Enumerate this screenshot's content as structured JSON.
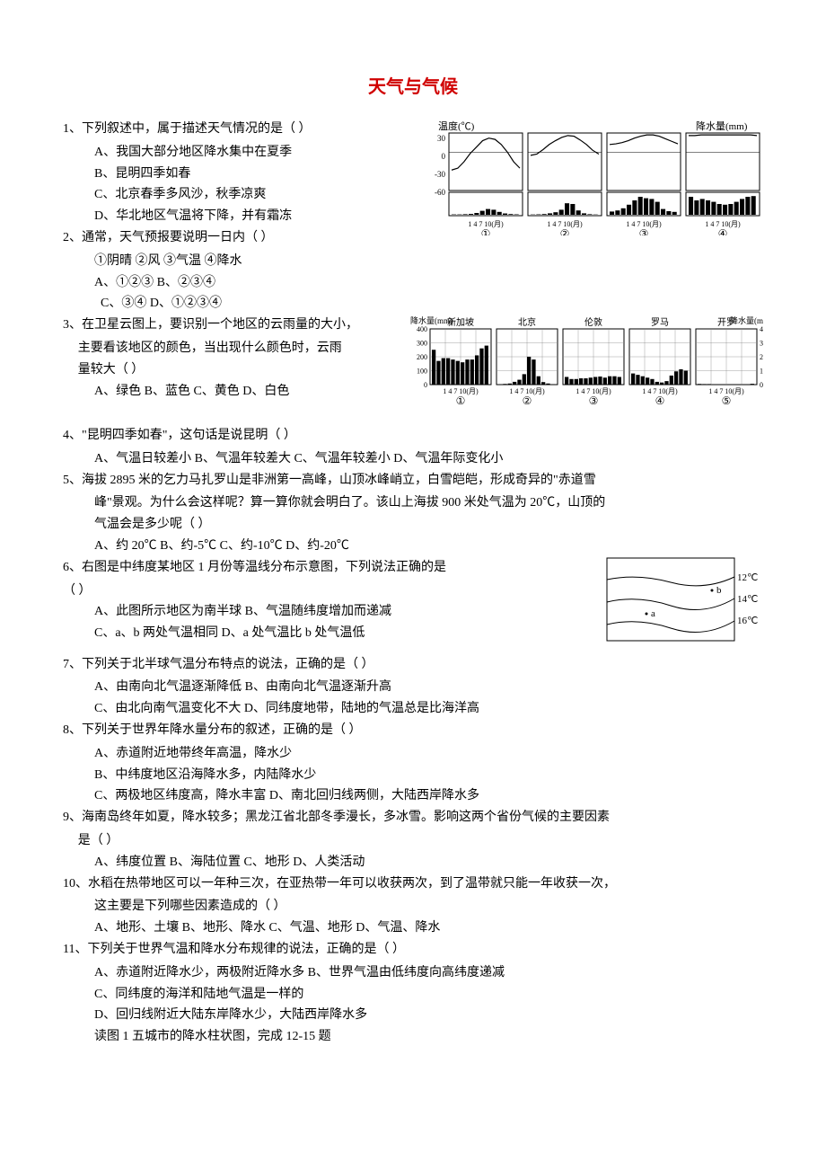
{
  "title": "天气与气候",
  "q1": {
    "stem": "1、下列叙述中，属于描述天气情况的是（   ）",
    "A": "A、我国大部分地区降水集中在夏季",
    "B": "B、昆明四季如春",
    "C": "C、北京春季多风沙，秋季凉爽",
    "D": "D、华北地区气温将下降，并有霜冻"
  },
  "q2": {
    "stem": "2、通常，天气预报要说明一日内（     ）",
    "line2": "①阴晴    ②风    ③气温    ④降水",
    "A": "A、①②③    B、②③④",
    "C": "C、③④   D、①②③④"
  },
  "q3": {
    "stem": "3、在卫星云图上，要识别一个地区的云雨量的大小，",
    "line2": "主要看该地区的颜色，当出现什么颜色时，云雨",
    "line3": "量较大（   ）",
    "opts": "A、绿色    B、蓝色    C、黄色    D、白色"
  },
  "q4": {
    "stem": "4、\"昆明四季如春\"，这句话是说昆明（    ）",
    "opts": "A、气温日较差小 B、气温年较差大  C、气温年较差小  D、气温年际变化小"
  },
  "q5": {
    "stem": "5、海拔 2895 米的乞力马扎罗山是非洲第一高峰，山顶冰峰峭立，白雪皑皑，形成奇异的\"赤道雪",
    "line2": "峰\"景观。为什么会这样呢？算一算你就会明白了。该山上海拔 900 米处气温为 20℃，山顶的",
    "line3": "气温会是多少呢（   ）",
    "opts": "A、约 20℃    B、约-5℃   C、约-10℃    D、约-20℃"
  },
  "q6": {
    "stem": "6、右图是中纬度某地区 1 月份等温线分布示意图，下列说法正确的是",
    "line2": "（   ）",
    "A": "A、此图所示地区为南半球    B、气温随纬度增加而递减",
    "C": "C、a、b 两处气温相同       D、a 处气温比 b 处气温低"
  },
  "q7": {
    "stem": "7、下列关于北半球气温分布特点的说法，正确的是（    ）",
    "A": "A、由南向北气温逐渐降低    B、由南向北气温逐渐升高",
    "C": "C、由北向南气温变化不大    D、同纬度地带，陆地的气温总是比海洋高"
  },
  "q8": {
    "stem": "8、下列关于世界年降水量分布的叙述，正确的是（    ）",
    "A": "A、赤道附近地带终年高温，降水少",
    "B": "B、中纬度地区沿海降水多，内陆降水少",
    "C": "C、两极地区纬度高，降水丰富    D、南北回归线两侧，大陆西岸降水多"
  },
  "q9": {
    "stem": "9、海南岛终年如夏，降水较多；黑龙江省北部冬季漫长，多冰雪。影响这两个省份气候的主要因素",
    "line2": "是（    ）",
    "opts": "A、纬度位置     B、海陆位置     C、地形    D、人类活动"
  },
  "q10": {
    "stem": "10、水稻在热带地区可以一年种三次，在亚热带一年可以收获两次，到了温带就只能一年收获一次，",
    "line2": "这主要是下列哪些因素造成的（    ）",
    "opts": "A、地形、土壤    B、地形、降水    C、气温、地形   D、气温、降水"
  },
  "q11": {
    "stem": "11、下列关于世界气温和降水分布规律的说法，正确的是（   ）",
    "A": "A、赤道附近降水少，两极附近降水多    B、世界气温由低纬度向高纬度递减",
    "C": "C、同纬度的海洋和陆地气温是一样的",
    "D": "D、回归线附近大陆东岸降水少，大陆西岸降水多",
    "trail": "读图 1 五城市的降水柱状图，完成 12-15 题"
  },
  "chart_top": {
    "title_left": "温度(℃)",
    "title_right": "降水量(mm)",
    "y_ticks": [
      "30",
      "0",
      "-30",
      "-60"
    ],
    "x_labels": "1  4  7 10(月)",
    "panel_labels": [
      "①",
      "②",
      "③",
      "④"
    ],
    "axis_color": "#000000",
    "bar_color": "#000000",
    "background": "#ffffff",
    "temp_series": {
      "1": [
        -28,
        -25,
        -15,
        -2,
        8,
        18,
        22,
        20,
        12,
        0,
        -15,
        -25
      ],
      "2": [
        -5,
        -3,
        4,
        12,
        18,
        23,
        26,
        25,
        19,
        12,
        3,
        -3
      ],
      "3": [
        12,
        13,
        15,
        18,
        22,
        25,
        27,
        27,
        25,
        21,
        17,
        13
      ],
      "4": [
        26,
        26,
        27,
        27,
        27,
        27,
        27,
        27,
        27,
        27,
        27,
        26
      ]
    },
    "precip_series": {
      "1": [
        5,
        5,
        8,
        12,
        25,
        55,
        80,
        70,
        40,
        18,
        10,
        6
      ],
      "2": [
        4,
        6,
        10,
        20,
        35,
        70,
        160,
        150,
        60,
        20,
        8,
        4
      ],
      "3": [
        45,
        60,
        90,
        140,
        200,
        250,
        230,
        220,
        180,
        80,
        50,
        40
      ],
      "4": [
        250,
        200,
        220,
        200,
        180,
        150,
        140,
        150,
        180,
        220,
        250,
        260
      ]
    }
  },
  "chart_cities": {
    "title": "降水量(mm)",
    "y_ticks": [
      "400",
      "300",
      "200",
      "100",
      "0"
    ],
    "x_labels": "1  4  7 10(月)",
    "cities": [
      "新加坡",
      "北京",
      "伦敦",
      "罗马",
      "开罗"
    ],
    "panel_labels": [
      "①",
      "②",
      "③",
      "④",
      "⑤"
    ],
    "grid_color": "#888888",
    "bar_color": "#000000",
    "series": {
      "新加坡": [
        250,
        170,
        190,
        190,
        180,
        170,
        160,
        180,
        180,
        210,
        260,
        280
      ],
      "北京": [
        3,
        5,
        8,
        20,
        35,
        75,
        200,
        180,
        60,
        18,
        8,
        3
      ],
      "伦敦": [
        55,
        40,
        40,
        45,
        45,
        50,
        55,
        58,
        50,
        60,
        60,
        55
      ],
      "罗马": [
        80,
        70,
        60,
        50,
        40,
        20,
        15,
        25,
        65,
        95,
        110,
        100
      ],
      "开罗": [
        5,
        4,
        4,
        2,
        1,
        0,
        0,
        0,
        0,
        1,
        3,
        6
      ]
    }
  },
  "isotherm": {
    "labels": [
      "12℃",
      "14℃",
      "16℃"
    ],
    "points": [
      "a",
      "b"
    ],
    "line_color": "#000000",
    "background": "#ffffff"
  }
}
